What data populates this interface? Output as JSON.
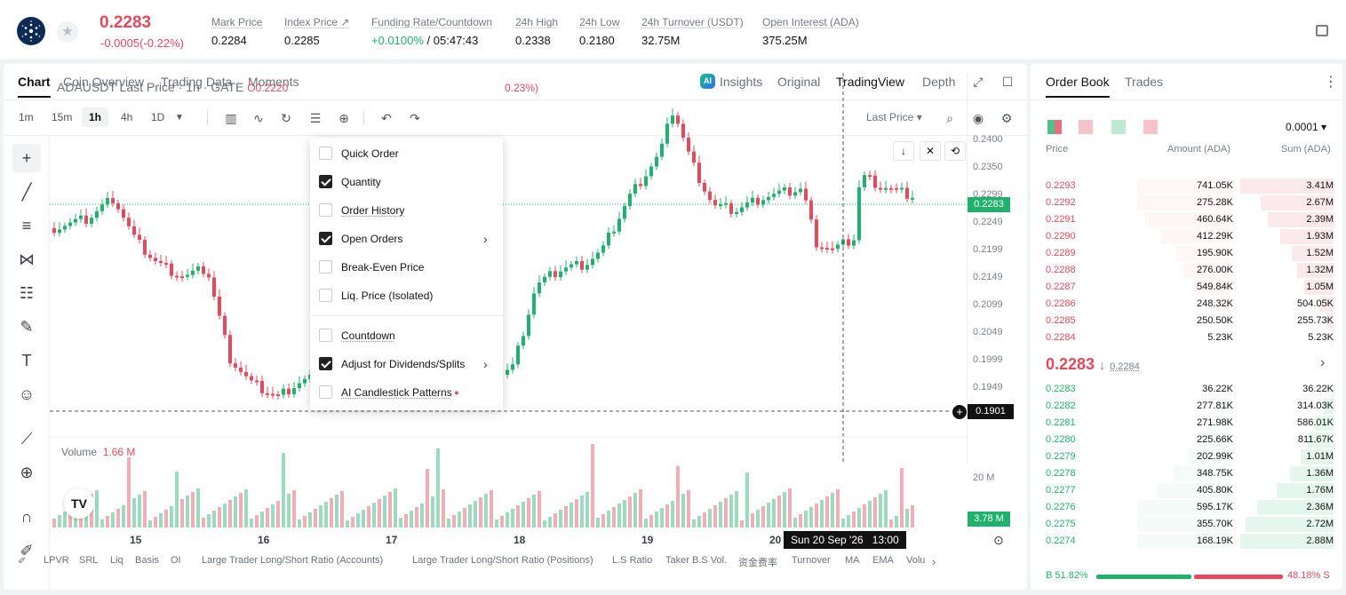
{
  "header": {
    "price": "0.2283",
    "change": "-0.0005(-0.22%)",
    "stats": [
      {
        "label": "Mark Price",
        "value": "0.2284"
      },
      {
        "label": "Index Price ↗",
        "value": "0.2285"
      },
      {
        "label": "Funding Rate/Countdown",
        "value": "+0.0100%",
        "value2": "/ 05:47:43"
      },
      {
        "label": "24h High",
        "value": "0.2338"
      },
      {
        "label": "24h Low",
        "value": "0.2180"
      },
      {
        "label": "24h Turnover (USDT)",
        "value": "32.75M"
      },
      {
        "label": "Open Interest (ADA)",
        "value": "375.25M"
      }
    ]
  },
  "tabs": [
    "Chart",
    "Coin Overview",
    "Trading Data",
    "Moments"
  ],
  "view_tabs": [
    "Insights",
    "Original",
    "TradingView",
    "Depth"
  ],
  "ai_badge": "AI",
  "timeframes": [
    "1m",
    "15m",
    "1h",
    "4h",
    "1D"
  ],
  "last_price_select": "Last Price",
  "legend": {
    "title": "ADAUSDT Last Price · 1h · GATE",
    "o": "O0.2220",
    "chg": "0.23%)"
  },
  "yticks": [
    "0.2400",
    "0.2350",
    "0.2299",
    "0.2249",
    "0.2199",
    "0.2149",
    "0.2099",
    "0.2049",
    "0.1999",
    "0.1949"
  ],
  "price_tag": "0.2283",
  "cross_tag": "0.1901",
  "vol_tag": "3.78 M",
  "vol_tick": "20 M",
  "volume": {
    "label": "Volume",
    "value": "1.66 M"
  },
  "menu": [
    {
      "label": "Quick Order",
      "checked": false
    },
    {
      "label": "Quantity",
      "checked": true
    },
    {
      "label": "Order History",
      "checked": false,
      "u": true
    },
    {
      "label": "Open Orders",
      "checked": true,
      "arrow": true
    },
    {
      "label": "Break-Even Price",
      "checked": false
    },
    {
      "label": "Liq. Price (Isolated)",
      "checked": false
    },
    {
      "label": "Countdown",
      "checked": false,
      "u": true
    },
    {
      "label": "Adjust for Dividends/Splits",
      "checked": true,
      "arrow": true
    },
    {
      "label": "AI Candlestick Patterns",
      "checked": false,
      "u": true,
      "dot": true
    }
  ],
  "xticks": [
    "15",
    "16",
    "17",
    "18",
    "19",
    "20"
  ],
  "cross_date": "Sun 20 Sep '26   13:00",
  "indicators": [
    "LPVR",
    "SRL",
    "Liq",
    "Basis",
    "OI",
    "Large Trader Long/Short Ratio (Accounts)",
    "Large Trader Long/Short Ratio (Positions)",
    "L.S Ratio",
    "Taker B.S Vol.",
    "资金费率",
    "Turnover",
    "MA",
    "EMA",
    "Volu"
  ],
  "orderbook": {
    "tabs": [
      "Order Book",
      "Trades"
    ],
    "precision": "0.0001",
    "headers": [
      "Price",
      "Amount (ADA)",
      "Sum (ADA)"
    ],
    "asks": [
      {
        "p": "0.2293",
        "a": "741.05K",
        "s": "3.41M",
        "d": 1.0
      },
      {
        "p": "0.2292",
        "a": "275.28K",
        "s": "2.67M",
        "d": 0.78
      },
      {
        "p": "0.2291",
        "a": "460.64K",
        "s": "2.39M",
        "d": 0.7
      },
      {
        "p": "0.2290",
        "a": "412.29K",
        "s": "1.93M",
        "d": 0.57
      },
      {
        "p": "0.2289",
        "a": "195.90K",
        "s": "1.52M",
        "d": 0.45
      },
      {
        "p": "0.2288",
        "a": "276.00K",
        "s": "1.32M",
        "d": 0.39
      },
      {
        "p": "0.2287",
        "a": "549.84K",
        "s": "1.05M",
        "d": 0.31
      },
      {
        "p": "0.2286",
        "a": "248.32K",
        "s": "504.05K",
        "d": 0.15
      },
      {
        "p": "0.2285",
        "a": "250.50K",
        "s": "255.73K",
        "d": 0.075
      },
      {
        "p": "0.2284",
        "a": "5.23K",
        "s": "5.23K",
        "d": 0.01
      }
    ],
    "mid_price": "0.2283",
    "mid_mark": "0.2284",
    "bids": [
      {
        "p": "0.2283",
        "a": "36.22K",
        "s": "36.22K",
        "d": 0.013
      },
      {
        "p": "0.2282",
        "a": "277.81K",
        "s": "314.03K",
        "d": 0.11
      },
      {
        "p": "0.2281",
        "a": "271.98K",
        "s": "586.01K",
        "d": 0.2
      },
      {
        "p": "0.2280",
        "a": "225.66K",
        "s": "811.67K",
        "d": 0.28
      },
      {
        "p": "0.2279",
        "a": "202.99K",
        "s": "1.01M",
        "d": 0.35
      },
      {
        "p": "0.2278",
        "a": "348.75K",
        "s": "1.36M",
        "d": 0.47
      },
      {
        "p": "0.2277",
        "a": "405.80K",
        "s": "1.76M",
        "d": 0.61
      },
      {
        "p": "0.2276",
        "a": "595.17K",
        "s": "2.36M",
        "d": 0.82
      },
      {
        "p": "0.2275",
        "a": "355.70K",
        "s": "2.72M",
        "d": 0.94
      },
      {
        "p": "0.2274",
        "a": "168.19K",
        "s": "2.88M",
        "d": 1.0
      }
    ],
    "buy_ratio": "51.82%",
    "sell_ratio": "48.18%",
    "buy_label": "B",
    "sell_label": "S"
  },
  "colors": {
    "up": "#20b26c",
    "down": "#e6495b"
  }
}
